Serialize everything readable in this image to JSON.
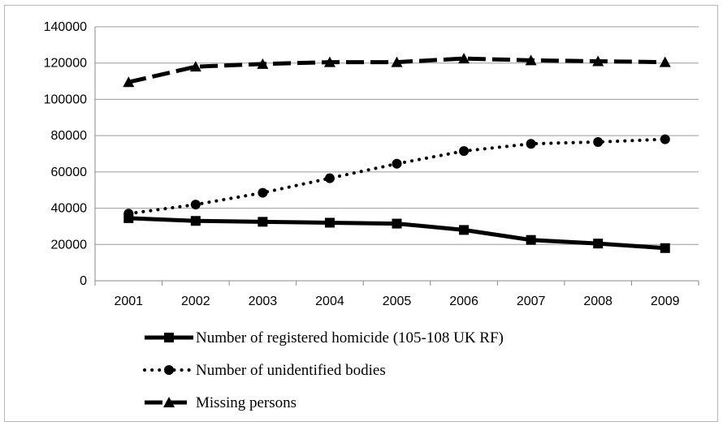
{
  "chart_data": {
    "type": "line",
    "title": "",
    "xlabel": "",
    "ylabel": "",
    "ylim": [
      0,
      140000
    ],
    "y_ticks": [
      "0",
      "20000",
      "40000",
      "60000",
      "80000",
      "100000",
      "120000",
      "140000"
    ],
    "categories": [
      "2001",
      "2002",
      "2003",
      "2004",
      "2005",
      "2006",
      "2007",
      "2008",
      "2009"
    ],
    "grid": true,
    "legend_position": "bottom",
    "series": [
      {
        "name": "Number of registered homicide (105-108 UK RF)",
        "values": [
          34500,
          33000,
          32500,
          32000,
          31500,
          28000,
          22500,
          20500,
          18000
        ],
        "line_style": "solid",
        "marker": "square",
        "color": "#000000"
      },
      {
        "name": "Number of unidentified bodies",
        "values": [
          37000,
          42000,
          48500,
          56500,
          64500,
          71500,
          75500,
          76500,
          78000
        ],
        "line_style": "dotted",
        "marker": "circle",
        "color": "#000000"
      },
      {
        "name": "Missing persons",
        "values": [
          109500,
          118000,
          119500,
          120500,
          120500,
          122500,
          121500,
          121000,
          120500
        ],
        "line_style": "dashed",
        "marker": "triangle",
        "color": "#000000"
      }
    ]
  }
}
